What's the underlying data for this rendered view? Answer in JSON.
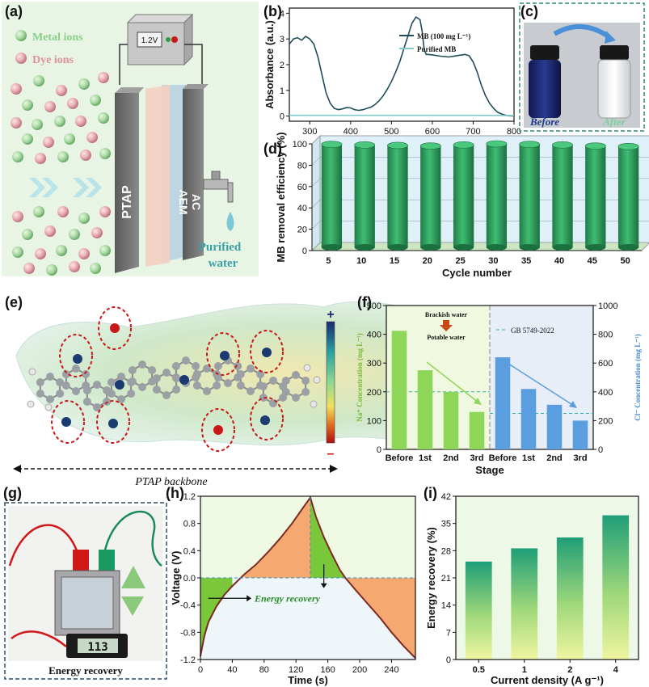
{
  "panels": {
    "a": {
      "label": "(a)",
      "legend": [
        "Metal ions",
        "Dye ions"
      ],
      "voltage": "1.2V",
      "layers": [
        "PTAP",
        "AEM",
        "AC"
      ],
      "outlet": "Purified water"
    },
    "b": {
      "label": "(b)"
    },
    "c": {
      "label": "(c)",
      "before": "Before",
      "after": "After"
    },
    "d": {
      "label": "(d)"
    },
    "e": {
      "label": "(e)",
      "caption": "PTAP backbone",
      "scale_plus": "+",
      "scale_minus": "–"
    },
    "f": {
      "label": "(f)",
      "note_top": "Brackish water",
      "note_bottom": "Potable water"
    },
    "g": {
      "label": "(g)",
      "caption": "Energy recovery",
      "meter": "113"
    },
    "h": {
      "label": "(h)",
      "annotation": "Energy recovery"
    },
    "i": {
      "label": "(i)"
    }
  },
  "chart_data": [
    {
      "id": "b",
      "type": "line",
      "xlabel": "Wavelength (nm)",
      "ylabel": "Absorbance (a.u.)",
      "xlim": [
        250,
        800
      ],
      "ylim": [
        -0.2,
        4.2
      ],
      "xticks": [
        300,
        400,
        500,
        600,
        700,
        800
      ],
      "yticks": [
        0,
        1,
        2,
        3,
        4
      ],
      "legend_position": "top-right",
      "series": [
        {
          "name": "MB (100 mg L⁻¹)",
          "color": "#1f4e5a",
          "x": [
            250,
            260,
            270,
            280,
            290,
            300,
            310,
            320,
            330,
            340,
            350,
            360,
            370,
            380,
            390,
            400,
            410,
            420,
            430,
            440,
            450,
            460,
            470,
            480,
            490,
            500,
            510,
            520,
            530,
            540,
            550,
            560,
            570,
            575,
            580,
            585,
            590,
            600,
            620,
            640,
            660,
            680,
            690,
            700,
            710,
            720,
            730,
            740,
            750,
            760,
            770,
            780,
            790,
            800
          ],
          "y": [
            2.8,
            3.0,
            3.05,
            2.95,
            3.1,
            3.0,
            2.8,
            2.3,
            1.6,
            0.9,
            0.5,
            0.3,
            0.25,
            0.28,
            0.33,
            0.32,
            0.25,
            0.22,
            0.25,
            0.3,
            0.35,
            0.45,
            0.6,
            0.8,
            1.05,
            1.35,
            1.7,
            2.1,
            2.6,
            3.1,
            3.6,
            3.85,
            3.75,
            3.3,
            2.6,
            2.4,
            2.4,
            2.38,
            2.33,
            2.3,
            2.35,
            2.4,
            2.35,
            2.1,
            1.7,
            1.2,
            0.8,
            0.5,
            0.3,
            0.15,
            0.08,
            0.03,
            0.01,
            0.0
          ]
        },
        {
          "name": "Purified MB",
          "color": "#7fcaca",
          "x": [
            250,
            300,
            400,
            500,
            600,
            700,
            800
          ],
          "y": [
            0.03,
            0.03,
            0.03,
            0.03,
            0.03,
            0.03,
            0.02
          ]
        }
      ]
    },
    {
      "id": "d",
      "type": "bar",
      "xlabel": "Cycle number",
      "ylabel": "MB removal efficiency (%)",
      "ylim": [
        0,
        100
      ],
      "yticks": [
        0,
        20,
        40,
        60,
        80,
        100
      ],
      "categories": [
        "5",
        "10",
        "15",
        "20",
        "25",
        "30",
        "35",
        "40",
        "45",
        "50"
      ],
      "values": [
        99.5,
        99,
        98.5,
        98,
        99,
        100,
        99.5,
        99,
        98,
        97.5
      ],
      "color": "#2e9e5e"
    },
    {
      "id": "f",
      "type": "bar",
      "xlabel": "Stage",
      "ylabel_left": "Na⁺ Concentration (mg L⁻¹)",
      "ylabel_right": "Cl⁻ Concentration (mg L⁻¹)",
      "ylim_left": [
        0,
        500
      ],
      "ylim_right": [
        0,
        1000
      ],
      "yticks_left": [
        0,
        100,
        200,
        300,
        400,
        500
      ],
      "yticks_right": [
        0,
        200,
        400,
        600,
        800,
        1000
      ],
      "reference": {
        "label": "GB 5749-2022",
        "na": 200,
        "cl": 250
      },
      "groups": [
        {
          "name": "Na⁺",
          "color": "#8ed65a",
          "categories": [
            "Before",
            "1st",
            "2nd",
            "3rd"
          ],
          "values": [
            412,
            275,
            200,
            130
          ]
        },
        {
          "name": "Cl⁻",
          "color": "#5a9ee0",
          "categories": [
            "Before",
            "1st",
            "2nd",
            "3rd"
          ],
          "values": [
            640,
            420,
            310,
            200
          ]
        }
      ]
    },
    {
      "id": "h",
      "type": "line",
      "xlabel": "Time (s)",
      "ylabel": "Voltage (V)",
      "xlim": [
        0,
        270
      ],
      "ylim": [
        -1.2,
        1.2
      ],
      "xticks": [
        0,
        40,
        80,
        120,
        160,
        200,
        240
      ],
      "yticks": [
        -1.2,
        -0.8,
        -0.4,
        0.0,
        0.4,
        0.8,
        1.2
      ],
      "series": [
        {
          "name": "",
          "color": "#7a2a20",
          "x": [
            0,
            5,
            10,
            20,
            30,
            40,
            55,
            70,
            85,
            100,
            115,
            130,
            138,
            145,
            155,
            165,
            175,
            182,
            195,
            210,
            225,
            240,
            255,
            270
          ],
          "y": [
            -1.15,
            -0.85,
            -0.65,
            -0.42,
            -0.25,
            -0.12,
            0.05,
            0.2,
            0.38,
            0.58,
            0.8,
            1.05,
            1.18,
            0.9,
            0.6,
            0.35,
            0.12,
            0.0,
            -0.18,
            -0.38,
            -0.58,
            -0.8,
            -1.0,
            -1.18
          ]
        }
      ]
    },
    {
      "id": "i",
      "type": "bar",
      "xlabel": "Current density (A g⁻¹)",
      "ylabel": "Energy recovery (%)",
      "ylim": [
        0,
        42
      ],
      "yticks": [
        0,
        7,
        14,
        21,
        28,
        35,
        42
      ],
      "categories": [
        "0.5",
        "1",
        "2",
        "4"
      ],
      "values": [
        25.2,
        28.6,
        31.4,
        37.1
      ]
    }
  ]
}
